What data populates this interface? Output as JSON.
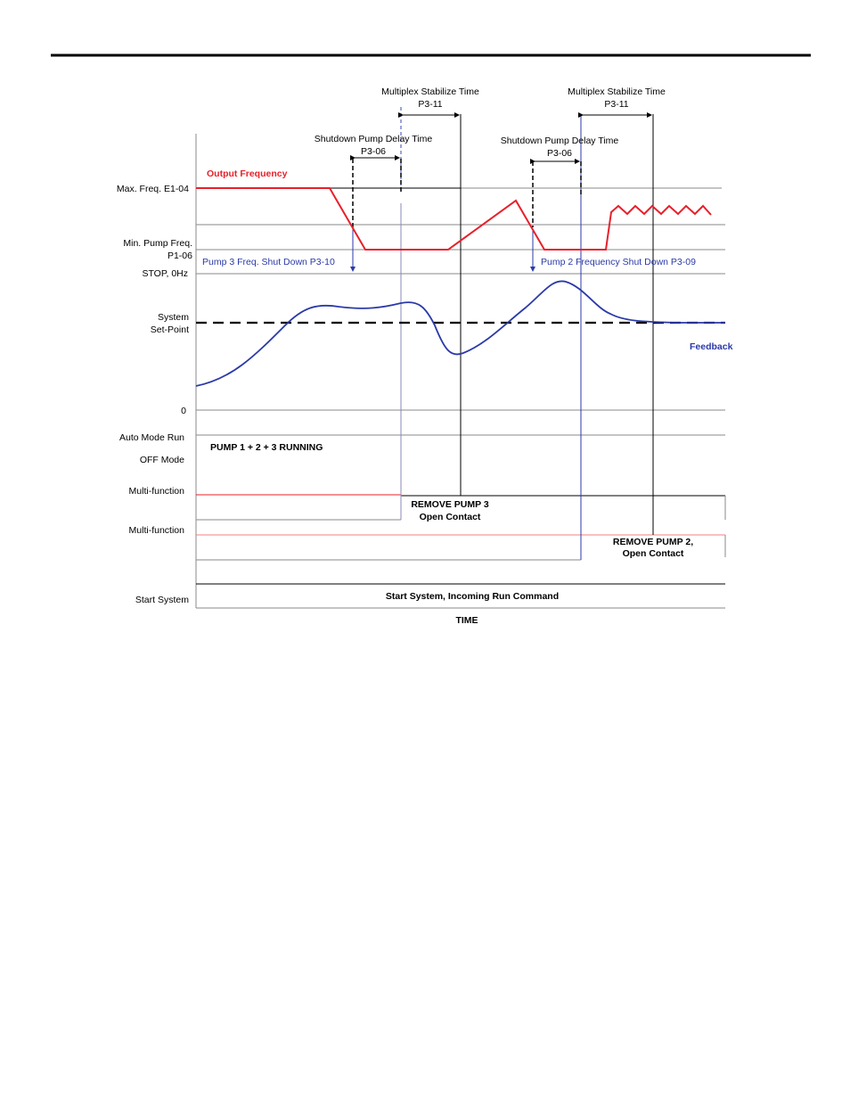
{
  "annotations": {
    "stabilize_1": {
      "title": "Multiplex Stabilize Time",
      "param": "P3-11"
    },
    "stabilize_2": {
      "title": "Multiplex Stabilize Time",
      "param": "P3-11"
    },
    "delay_1": {
      "title": "Shutdown Pump Delay Time",
      "param": "P3-06"
    },
    "delay_2": {
      "title": "Shutdown Pump Delay Time",
      "param": "P3-06"
    },
    "output_frequency": "Output Frequency",
    "pump3_shutdown": "Pump 3 Freq. Shut Down P3-10",
    "pump2_shutdown": "Pump 2 Frequency Shut Down P3-09",
    "feedback": "Feedback",
    "running": "PUMP 1 + 2 + 3 RUNNING",
    "remove_pump3": {
      "line1": "REMOVE PUMP 3",
      "line2": "Open Contact"
    },
    "remove_pump2": {
      "line1": "REMOVE PUMP 2,",
      "line2": "Open Contact"
    },
    "start_system": "Start System, Incoming Run Command",
    "time_axis": "TIME"
  },
  "labels": {
    "max_freq": "Max. Freq. E1-04",
    "min_pump_freq_1": "Min. Pump Freq.",
    "min_pump_freq_2": "P1-06",
    "stop": "STOP, 0Hz",
    "setpoint_1": "System",
    "setpoint_2": "Set-Point",
    "zero": "0",
    "auto_mode_1": "Auto Mode Run",
    "auto_mode_2": "OFF Mode",
    "multifunction_1": "Multi-function",
    "multifunction_2": "Multi-function",
    "start_system": "Start System"
  },
  "colors": {
    "output_frequency": "#e8202a",
    "feedback": "#2b3aa8",
    "grid": "#8a8a8a"
  }
}
